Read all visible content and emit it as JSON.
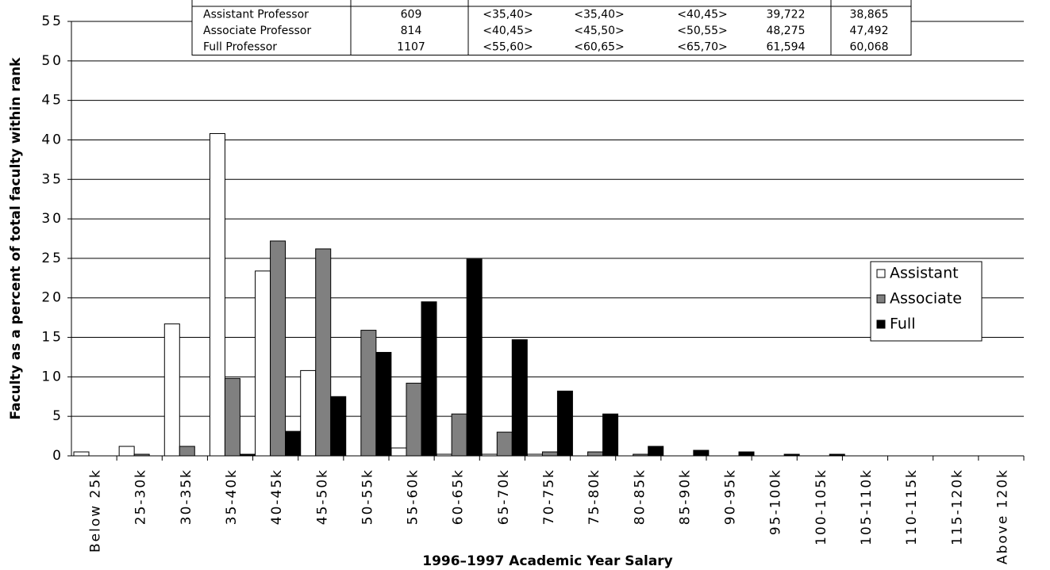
{
  "chart_data": {
    "type": "bar",
    "x_label": "1996–1997 Academic Year Salary",
    "y_label": "Faculty as a percent of total faculty within rank",
    "categories": [
      "Below 25k",
      "25-30k",
      "30-35k",
      "35-40k",
      "40-45k",
      "45-50k",
      "50-55k",
      "55-60k",
      "60-65k",
      "65-70k",
      "70-75k",
      "75-80k",
      "80-85k",
      "85-90k",
      "90-95k",
      "95-100k",
      "100-105k",
      "105-110k",
      "110-115k",
      "115-120k",
      "Above 120k"
    ],
    "series": [
      {
        "name": "Assistant",
        "color": "#ffffff",
        "values": [
          0.5,
          1.2,
          16.7,
          40.8,
          23.4,
          10.8,
          0,
          1.0,
          0.2,
          0.2,
          0.2,
          0,
          0,
          0,
          0,
          0,
          0,
          0,
          0,
          0,
          0
        ]
      },
      {
        "name": "Associate",
        "color": "#808080",
        "values": [
          0,
          0.2,
          1.2,
          9.8,
          27.2,
          26.2,
          15.9,
          9.2,
          5.3,
          3.0,
          0.5,
          0.5,
          0.2,
          0,
          0,
          0,
          0,
          0,
          0,
          0,
          0
        ]
      },
      {
        "name": "Full",
        "color": "#000000",
        "values": [
          0,
          0,
          0,
          0.2,
          3.1,
          7.5,
          13.1,
          19.5,
          24.9,
          14.7,
          8.2,
          5.3,
          1.2,
          0.7,
          0.5,
          0.2,
          0.2,
          0,
          0,
          0,
          0
        ]
      }
    ],
    "ylim": [
      0,
      55
    ],
    "yticks": [
      0,
      5,
      10,
      15,
      20,
      25,
      30,
      35,
      40,
      45,
      50,
      55
    ],
    "grid": true,
    "legend": "right"
  },
  "table": {
    "rows": [
      [
        "Assistant Professor",
        "609",
        "<35,40>",
        "<35,40>",
        "<40,45>",
        "39,722",
        "38,865"
      ],
      [
        "Associate Professor",
        "814",
        "<40,45>",
        "<45,50>",
        "<50,55>",
        "48,275",
        "47,492"
      ],
      [
        "Full Professor",
        "1107",
        "<55,60>",
        "<60,65>",
        "<65,70>",
        "61,594",
        "60,068"
      ]
    ]
  }
}
